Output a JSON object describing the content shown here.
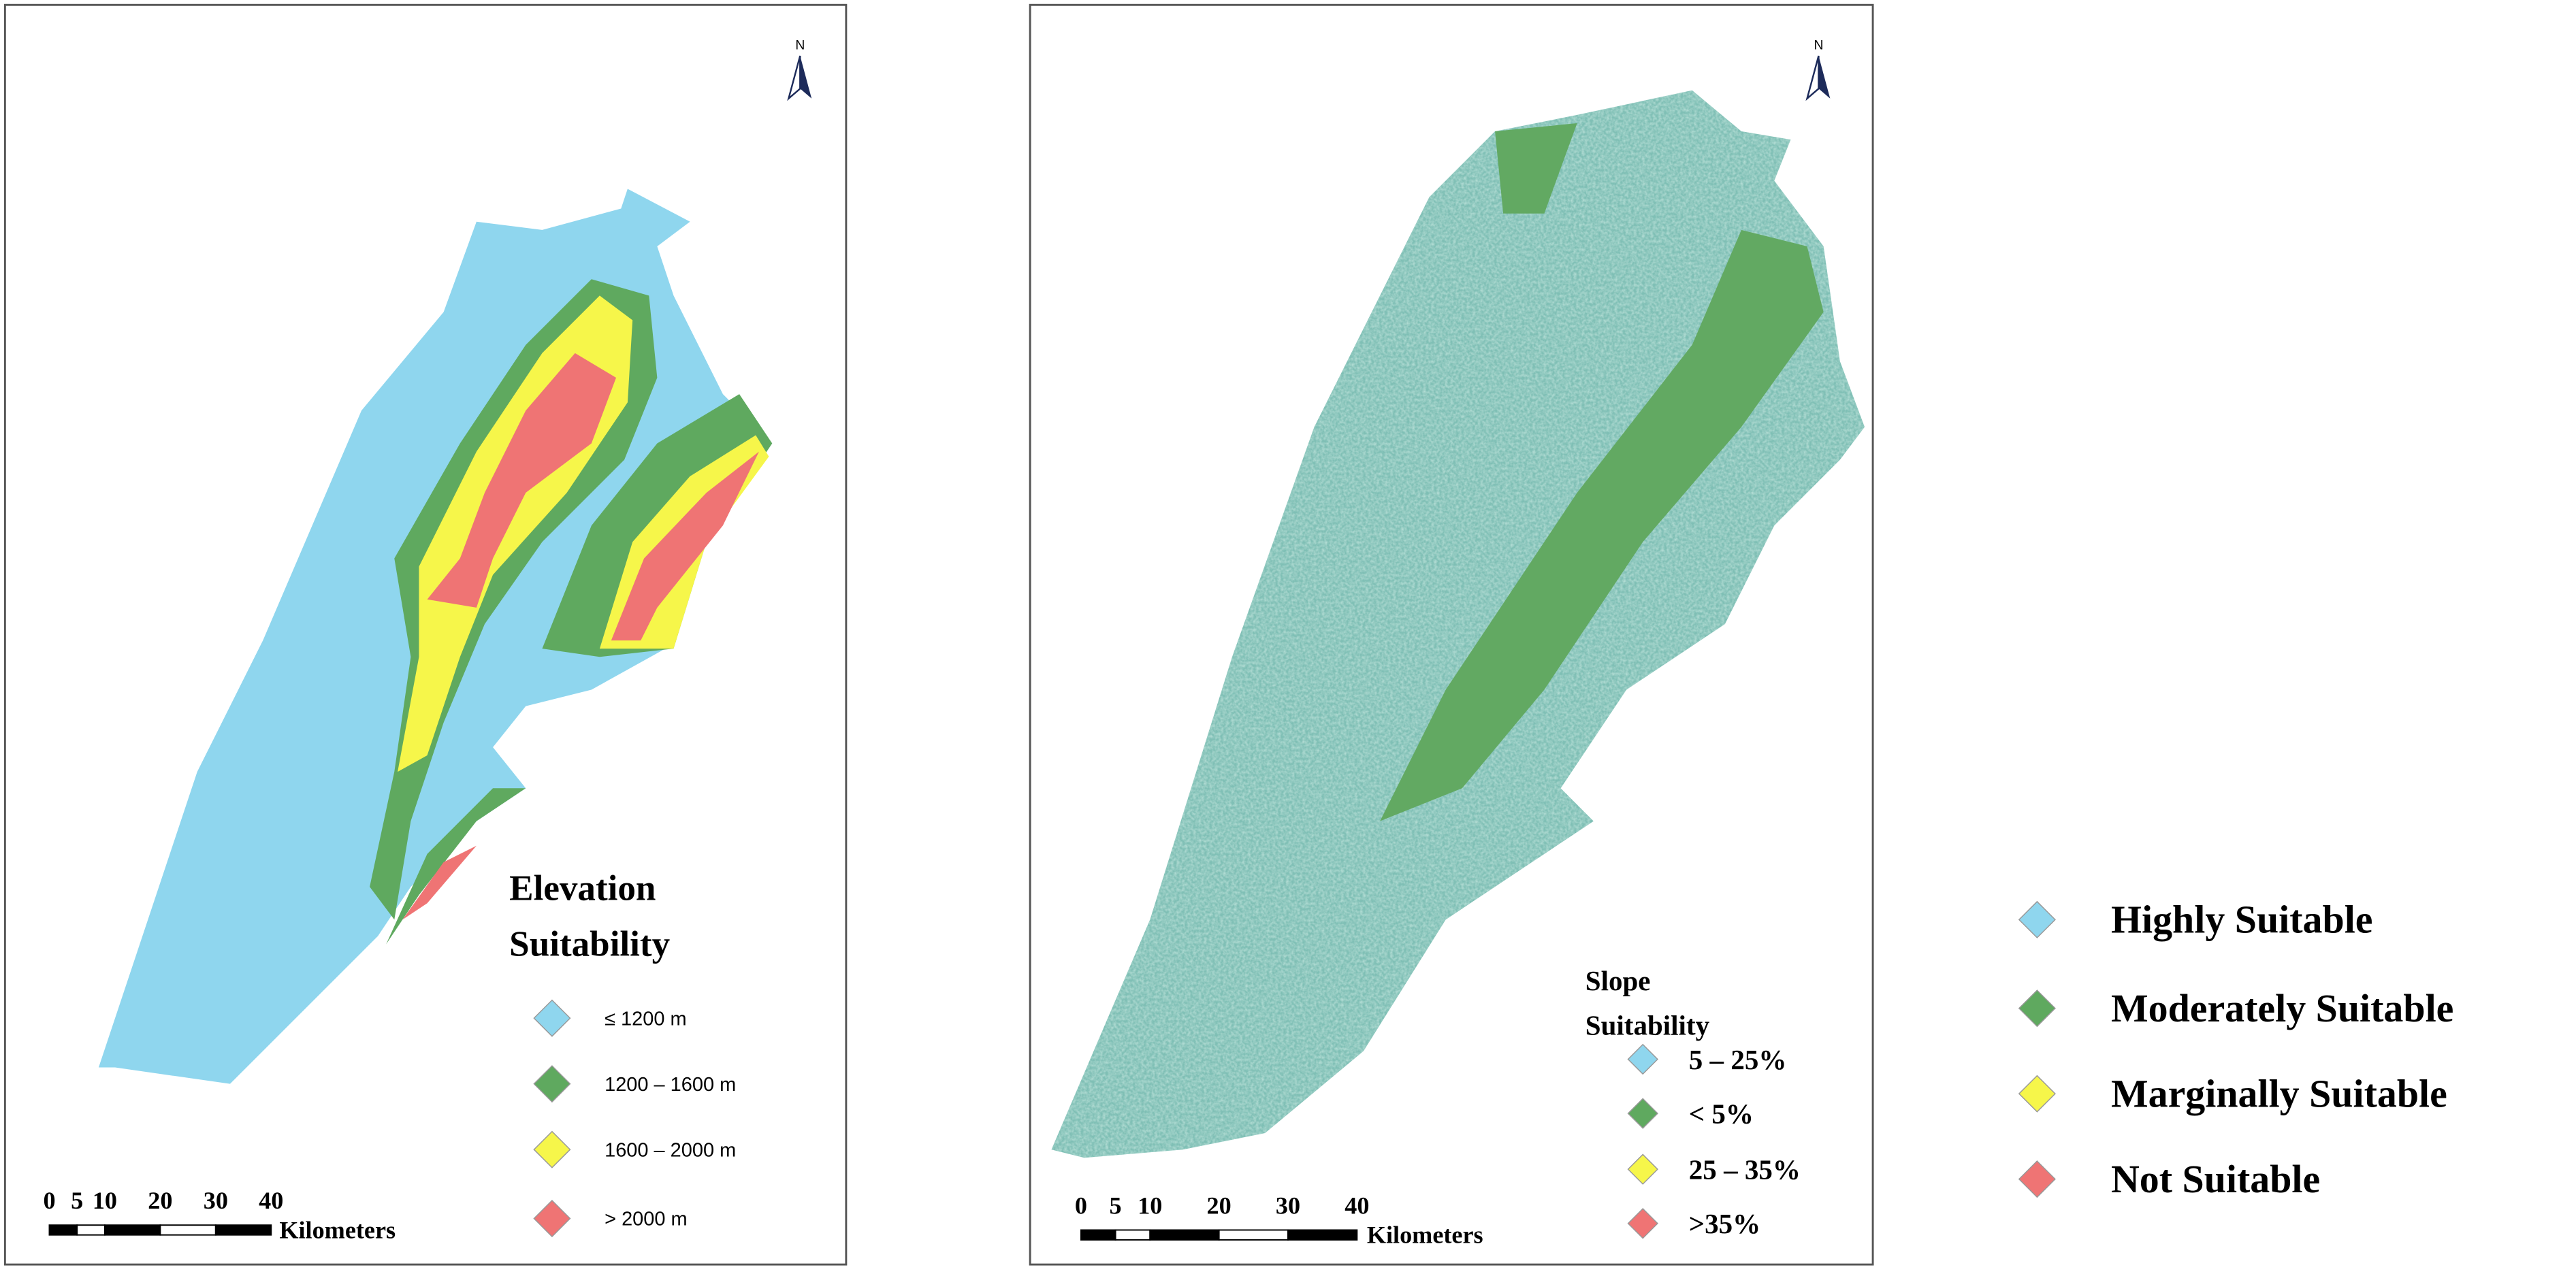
{
  "panels": [
    {
      "title": [
        "Elevation",
        "Suitability"
      ],
      "north": "N",
      "legend": [
        {
          "label": "≤ 1200 m",
          "color": "#8fd6ee"
        },
        {
          "label": "1200 – 1600 m",
          "color": "#5fa95f"
        },
        {
          "label": "1600 – 2000 m",
          "color": "#f6f64a"
        },
        {
          "label": "> 2000 m",
          "color": "#ef7474"
        }
      ],
      "scale": {
        "ticks": [
          0,
          5,
          10,
          20,
          30,
          40
        ],
        "unit": "Kilometers"
      }
    },
    {
      "title": [
        "Slope",
        "Suitability"
      ],
      "north": "N",
      "legend": [
        {
          "label": "5 – 25%",
          "color": "#8fd6ee"
        },
        {
          "label": "< 5%",
          "color": "#5fa95f"
        },
        {
          "label": "25 – 35%",
          "color": "#f6f64a"
        },
        {
          "label": ">35%",
          "color": "#ef7474"
        }
      ],
      "scale": {
        "ticks": [
          0,
          5,
          10,
          20,
          30,
          40
        ],
        "unit": "Kilometers"
      }
    }
  ],
  "legend": [
    {
      "label": "Highly Suitable",
      "color": "#8fd6ee"
    },
    {
      "label": "Moderately Suitable",
      "color": "#5fa95f"
    },
    {
      "label": "Marginally Suitable",
      "color": "#f6f64a"
    },
    {
      "label": "Not Suitable",
      "color": "#ef7474"
    }
  ]
}
